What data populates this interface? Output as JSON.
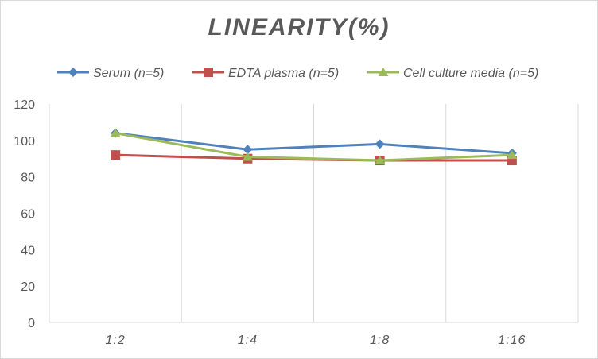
{
  "chart_data": {
    "type": "line",
    "title": "LINEARITY(%)",
    "categories": [
      "1:2",
      "1:4",
      "1:8",
      "1:16"
    ],
    "ylim": [
      0,
      120
    ],
    "yticks": [
      0,
      20,
      40,
      60,
      80,
      100,
      120
    ],
    "grid": "vertical",
    "legend_position": "top",
    "series": [
      {
        "name": "Serum (n=5)",
        "values": [
          104,
          95,
          98,
          93
        ],
        "color": "#4f81bd",
        "marker": "diamond"
      },
      {
        "name": "EDTA plasma (n=5)",
        "values": [
          92,
          90,
          89,
          89
        ],
        "color": "#c0504d",
        "marker": "square"
      },
      {
        "name": "Cell culture media (n=5)",
        "values": [
          104,
          91,
          89,
          92
        ],
        "color": "#9bbb59",
        "marker": "triangle"
      }
    ]
  }
}
